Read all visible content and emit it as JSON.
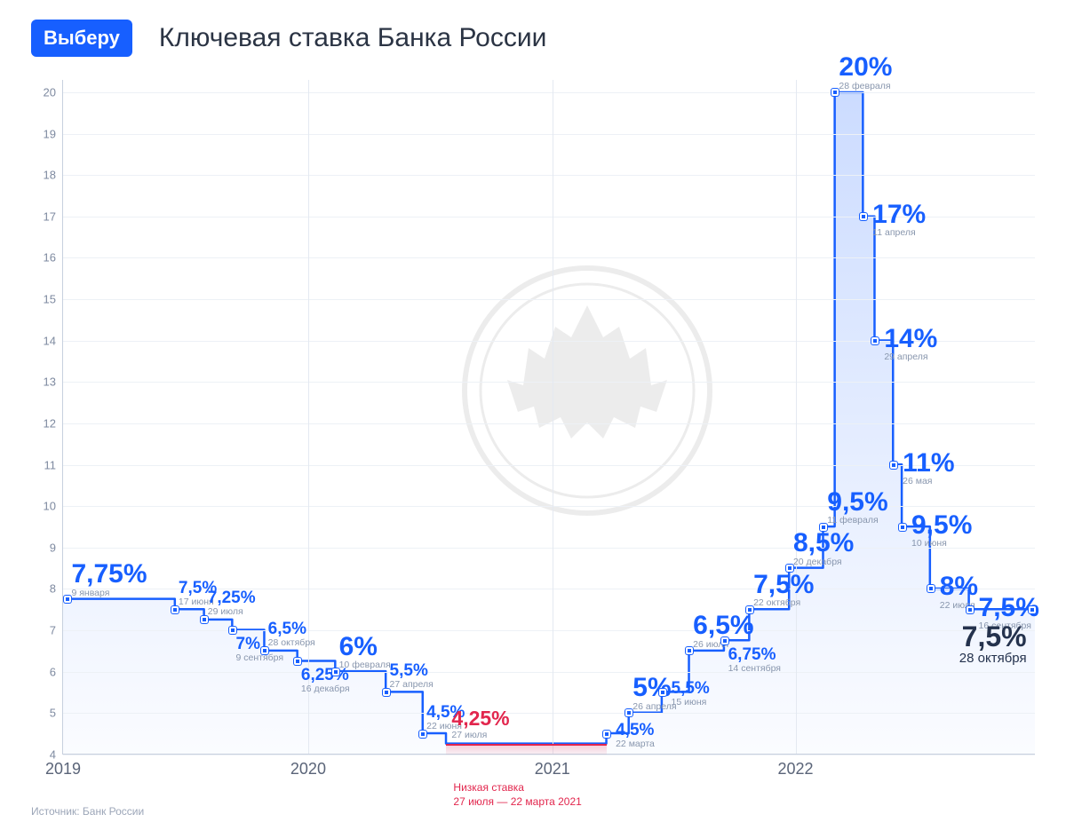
{
  "header": {
    "logo": "Выберу",
    "title": "Ключевая ставка Банка России"
  },
  "source": "Источник: Банк России",
  "chart": {
    "type": "step-area",
    "colors": {
      "line": "#175fff",
      "fill_top": "rgba(23,95,255,0.22)",
      "fill_bottom": "rgba(23,95,255,0.02)",
      "low_line": "#e2264d",
      "low_fill": "rgba(226,38,77,0.15)",
      "grid": "#edf1f6",
      "axis": "#c7d0de",
      "tick_text": "#7e8aa0",
      "xtick_text": "#5a6478",
      "label": "#175fff",
      "final_label": "#24324d",
      "background": "#ffffff"
    },
    "ylim": [
      4,
      20.3
    ],
    "yticks": [
      4,
      5,
      6,
      7,
      8,
      9,
      10,
      11,
      12,
      13,
      14,
      15,
      16,
      17,
      18,
      19,
      20
    ],
    "x_start": "2019-01-01",
    "x_end": "2022-12-31",
    "xticks": [
      {
        "t": 0.0,
        "label": "2019"
      },
      {
        "t": 0.252,
        "label": "2020"
      },
      {
        "t": 0.503,
        "label": "2021"
      },
      {
        "t": 0.753,
        "label": "2022"
      }
    ],
    "points": [
      {
        "t": 0.005,
        "rate": 7.75,
        "label": "7,75%",
        "date": "9 января",
        "big": true,
        "lp": "above"
      },
      {
        "t": 0.115,
        "rate": 7.5,
        "label": "7,5%",
        "date": "17 июня",
        "big": false,
        "lp": "above"
      },
      {
        "t": 0.145,
        "rate": 7.25,
        "label": "7,25%",
        "date": "29 июля",
        "big": false,
        "lp": "above"
      },
      {
        "t": 0.174,
        "rate": 7.0,
        "label": "7%",
        "date": "9 сентября",
        "big": false,
        "lp": "below"
      },
      {
        "t": 0.207,
        "rate": 6.5,
        "label": "6,5%",
        "date": "28 октября",
        "big": false,
        "lp": "above"
      },
      {
        "t": 0.241,
        "rate": 6.25,
        "label": "6,25%",
        "date": "16 декабря",
        "big": false,
        "lp": "below"
      },
      {
        "t": 0.28,
        "rate": 6.0,
        "label": "6%",
        "date": "10 февраля",
        "big": true,
        "lp": "above"
      },
      {
        "t": 0.332,
        "rate": 5.5,
        "label": "5,5%",
        "date": "27 апреля",
        "big": false,
        "lp": "above"
      },
      {
        "t": 0.37,
        "rate": 4.5,
        "label": "4,5%",
        "date": "22 июня",
        "big": false,
        "lp": "above"
      },
      {
        "t": 0.394,
        "rate": 4.25,
        "label": "4,25%",
        "date": "27 июля",
        "big": true,
        "lp": "above",
        "low": true
      },
      {
        "t": 0.559,
        "rate": 4.5,
        "label": "4,5%",
        "date": "22 марта",
        "big": false,
        "lp": "right"
      },
      {
        "t": 0.582,
        "rate": 5.0,
        "label": "5%",
        "date": "26 апреля",
        "big": true,
        "lp": "above"
      },
      {
        "t": 0.616,
        "rate": 5.5,
        "label": "5,5%",
        "date": "15 июня",
        "big": false,
        "lp": "right"
      },
      {
        "t": 0.644,
        "rate": 6.5,
        "label": "6,5%",
        "date": "26 июля",
        "big": true,
        "lp": "above"
      },
      {
        "t": 0.68,
        "rate": 6.75,
        "label": "6,75%",
        "date": "14 сентября",
        "big": false,
        "lp": "below"
      },
      {
        "t": 0.706,
        "rate": 7.5,
        "label": "7,5%",
        "date": "22 октября",
        "big": true,
        "lp": "above"
      },
      {
        "t": 0.747,
        "rate": 8.5,
        "label": "8,5%",
        "date": "20 декабря",
        "big": true,
        "lp": "above"
      },
      {
        "t": 0.782,
        "rate": 9.5,
        "label": "9,5%",
        "date": "11 февраля",
        "big": true,
        "lp": "above"
      },
      {
        "t": 0.794,
        "rate": 20.0,
        "label": "20%",
        "date": "28 февраля",
        "big": true,
        "lp": "above"
      },
      {
        "t": 0.823,
        "rate": 17.0,
        "label": "17%",
        "date": "11 апреля",
        "big": true,
        "lp": "right"
      },
      {
        "t": 0.835,
        "rate": 14.0,
        "label": "14%",
        "date": "29 апреля",
        "big": true,
        "lp": "right"
      },
      {
        "t": 0.854,
        "rate": 11.0,
        "label": "11%",
        "date": "26 мая",
        "big": true,
        "lp": "right"
      },
      {
        "t": 0.863,
        "rate": 9.5,
        "label": "9,5%",
        "date": "10 июня",
        "big": true,
        "lp": "right"
      },
      {
        "t": 0.892,
        "rate": 8.0,
        "label": "8%",
        "date": "22 июля",
        "big": true,
        "lp": "right"
      },
      {
        "t": 0.932,
        "rate": 7.5,
        "label": "7,5%",
        "date": "16 сентября",
        "big": true,
        "lp": "right"
      },
      {
        "t": 0.996,
        "rate": 7.5,
        "label": "7,5%",
        "date": "28 октября",
        "big": true,
        "lp": "below",
        "final": true
      }
    ],
    "low_band": {
      "t_start": 0.394,
      "t_end": 0.559,
      "rate": 4.25,
      "note_title": "Низкая ставка",
      "note_range": "27 июля — 22 марта 2021"
    },
    "fontsize": {
      "big_label": 30,
      "small_label": 19,
      "date": 10.5,
      "xtick": 18,
      "ytick": 13
    },
    "line_width": 2.5,
    "marker_size": 8
  }
}
